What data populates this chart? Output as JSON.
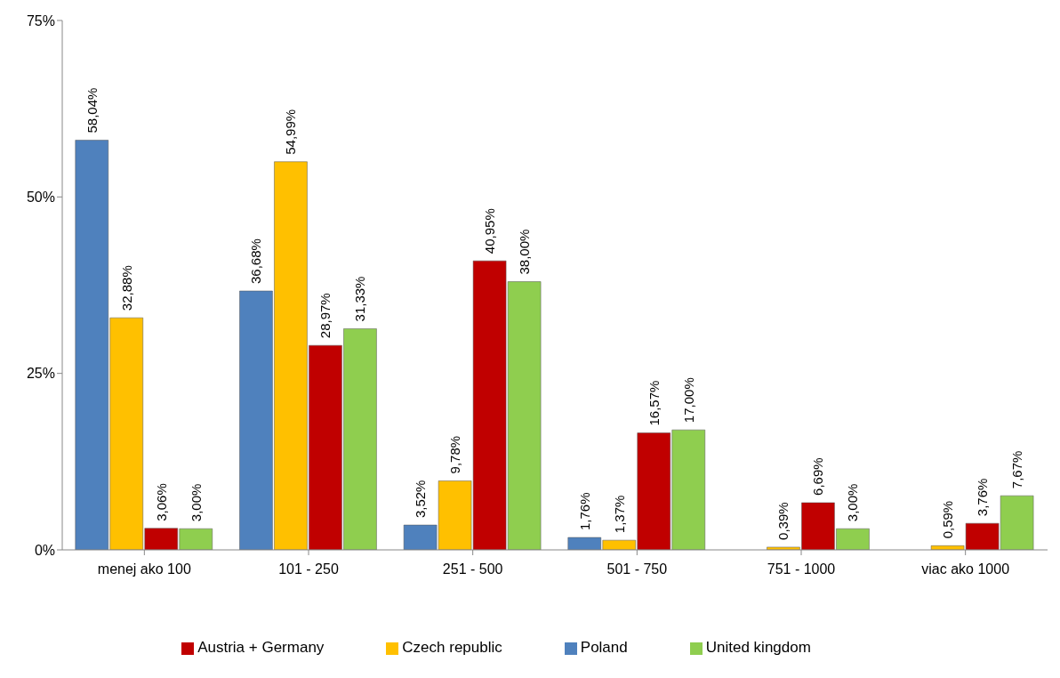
{
  "chart_data": {
    "type": "bar",
    "categories": [
      "menej ako 100",
      "101 - 250",
      "251 - 500",
      "501 - 750",
      "751 - 1000",
      "viac ako 1000"
    ],
    "series": [
      {
        "name": "Poland",
        "color": "#4f81bd",
        "values": [
          58.04,
          36.68,
          3.52,
          1.76,
          null,
          null
        ],
        "value_labels": [
          "58,04%",
          "36,68%",
          "3,52%",
          "1,76%",
          null,
          null
        ]
      },
      {
        "name": "Czech republic",
        "color": "#ffc000",
        "values": [
          32.88,
          54.99,
          9.78,
          1.37,
          0.39,
          0.59
        ],
        "value_labels": [
          "32,88%",
          "54,99%",
          "9,78%",
          "1,37%",
          "0,39%",
          "0,59%"
        ]
      },
      {
        "name": "Austria + Germany",
        "color": "#c00000",
        "values": [
          3.06,
          28.97,
          40.95,
          16.57,
          6.69,
          3.76
        ],
        "value_labels": [
          "3,06%",
          "28,97%",
          "40,95%",
          "16,57%",
          "6,69%",
          "3,76%"
        ]
      },
      {
        "name": "United kingdom",
        "color": "#8fce4f",
        "values": [
          3.0,
          31.33,
          38.0,
          17.0,
          3.0,
          7.67
        ],
        "value_labels": [
          "3,00%",
          "31,33%",
          "38,00%",
          "17,00%",
          "3,00%",
          "7,67%"
        ]
      }
    ],
    "ylim": [
      0,
      75
    ],
    "yticks": [
      {
        "value": 0,
        "label": "0%"
      },
      {
        "value": 25,
        "label": "25%"
      },
      {
        "value": 50,
        "label": "50%"
      },
      {
        "value": 75,
        "label": "75%"
      }
    ],
    "grid": false,
    "legend": "bottom"
  }
}
